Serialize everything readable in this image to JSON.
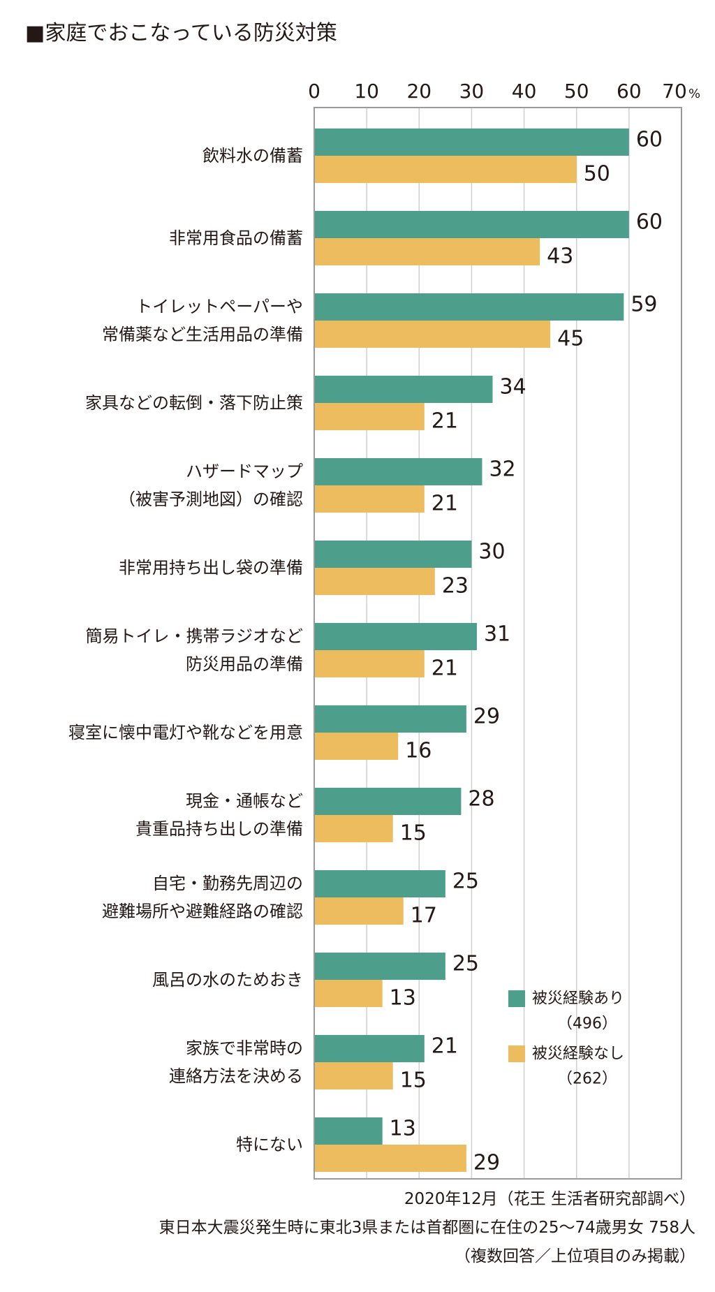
{
  "title": "■家庭でおこなっている防災対策",
  "chart_data": {
    "type": "bar",
    "orientation": "horizontal",
    "categories": [
      [
        "飲料水の備蓄"
      ],
      [
        "非常用食品の備蓄"
      ],
      [
        "トイレットペーパーや",
        "常備薬など生活用品の準備"
      ],
      [
        "家具などの転倒・落下防止策"
      ],
      [
        "ハザードマップ",
        "（被害予測地図）の確認"
      ],
      [
        "非常用持ち出し袋の準備"
      ],
      [
        "簡易トイレ・携帯ラジオなど",
        "防災用品の準備"
      ],
      [
        "寝室に懐中電灯や靴などを用意"
      ],
      [
        "現金・通帳など",
        "貴重品持ち出しの準備"
      ],
      [
        "自宅・勤務先周辺の",
        "避難場所や避難経路の確認"
      ],
      [
        "風呂の水のためおき"
      ],
      [
        "家族で非常時の",
        "連絡方法を決める"
      ],
      [
        "特にない"
      ]
    ],
    "series": [
      {
        "name": "被災経験あり",
        "note": "（496）",
        "color": "#4d9f8c",
        "values": [
          60,
          60,
          59,
          34,
          32,
          30,
          31,
          29,
          28,
          25,
          25,
          21,
          13
        ]
      },
      {
        "name": "被災経験なし",
        "note": "（262）",
        "color": "#ecbc5f",
        "values": [
          50,
          43,
          45,
          21,
          21,
          23,
          21,
          16,
          15,
          17,
          13,
          15,
          29
        ]
      }
    ],
    "xlim": [
      0,
      70
    ],
    "ticks": [
      0,
      10,
      20,
      30,
      40,
      50,
      60,
      70
    ],
    "unit": "%",
    "grid": true,
    "legend_position": "bottom-right"
  },
  "footer": [
    "2020年12月（花王 生活者研究部調べ）",
    "東日本大震災発生時に東北3県または首都圏に在住の25〜74歳男女 758人",
    "（複数回答／上位項目のみ掲載）"
  ]
}
